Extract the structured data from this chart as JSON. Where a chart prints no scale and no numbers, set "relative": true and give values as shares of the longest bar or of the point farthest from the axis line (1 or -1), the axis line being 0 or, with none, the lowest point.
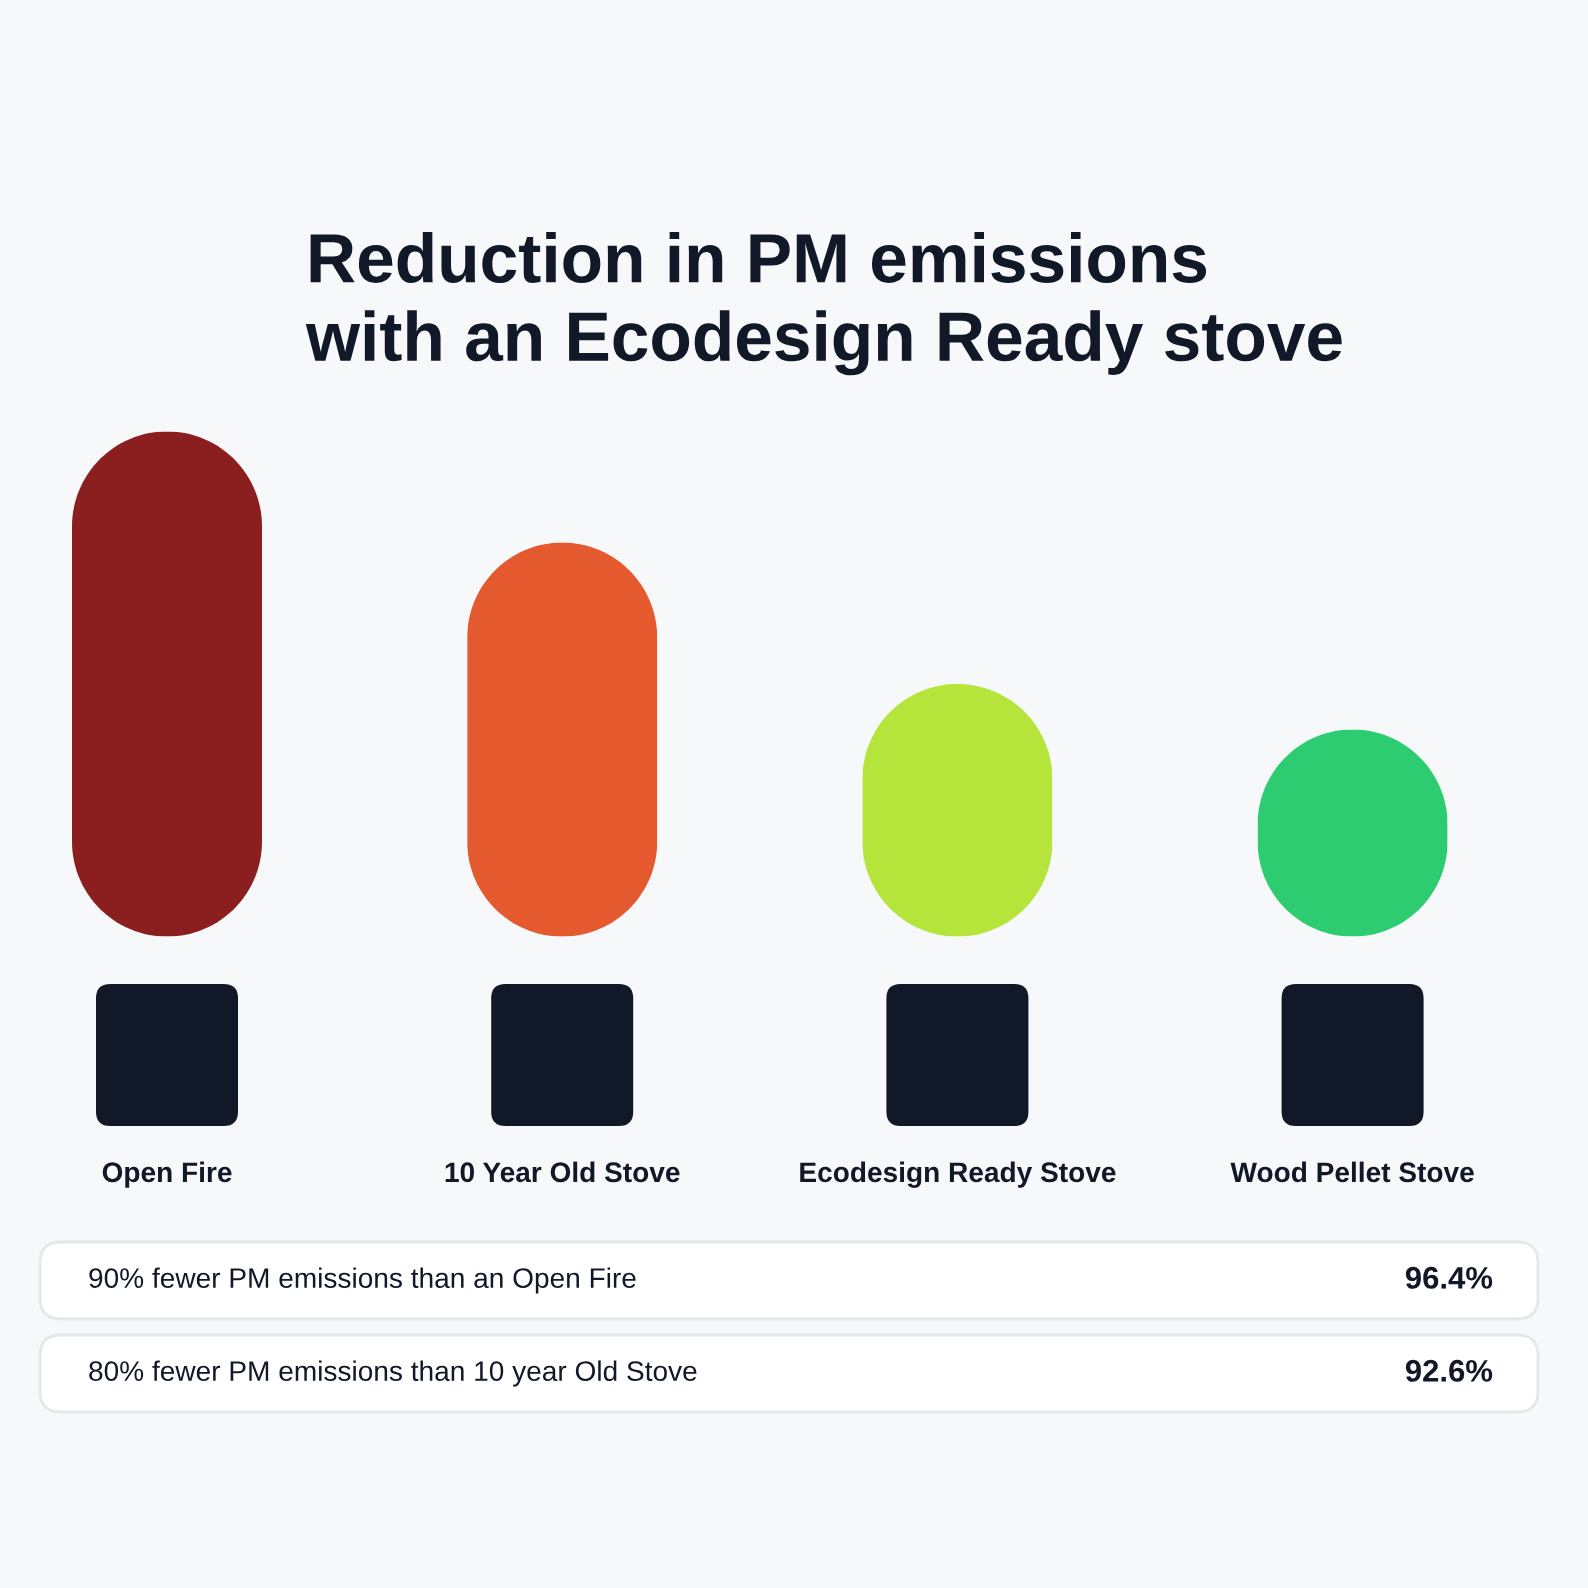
{
  "chart_data": {
    "type": "bar",
    "title": "Reduction in PM emissions\nwith an Ecodesign Ready stove",
    "categories": [
      "Open Fire",
      "10 Year Old Stove",
      "Ecodesign Ready Stove",
      "Wood Pellet Stove"
    ],
    "values": [
      1,
      0.78,
      0.5,
      0.41
    ],
    "colors": [
      "#8b1e1f",
      "#e5592e",
      "#b5e53a",
      "#2ecc71"
    ],
    "relative": true,
    "annotations": [
      "90% fewer PM emissions than an Open Fire",
      "96.4%",
      "80% fewer PM emissions than 10 year Old Stove",
      "92.6%"
    ]
  }
}
